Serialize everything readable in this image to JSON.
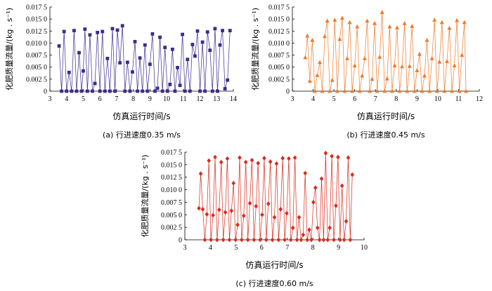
{
  "chart_data": [
    {
      "type": "line",
      "panel": "a",
      "caption": "(a)  行进速度0.35 m/s",
      "xlabel": "仿真运行时间/s",
      "ylabel": "化肥质量流量/(kg . s⁻¹)",
      "xlim": [
        3,
        14
      ],
      "ylim": [
        0,
        0.0175
      ],
      "xticks": [
        3,
        4,
        5,
        6,
        7,
        8,
        9,
        10,
        11,
        12,
        13,
        14
      ],
      "yticks": [
        0,
        0.0025,
        0.005,
        0.0075,
        0.01,
        0.0125,
        0.015,
        0.0175
      ],
      "ytick_labels": [
        "0",
        "0.002 5",
        "0.005 0",
        "0.007 5",
        "0.010 0",
        "0.012 5",
        "0.015 0",
        "0.017 5"
      ],
      "marker": "square",
      "color": "#3b2c8c",
      "x": [
        3.55,
        3.7,
        3.85,
        4.0,
        4.15,
        4.3,
        4.45,
        4.6,
        4.75,
        4.9,
        5.0,
        5.1,
        5.25,
        5.4,
        5.55,
        5.7,
        5.85,
        6.0,
        6.15,
        6.3,
        6.45,
        6.6,
        6.75,
        6.9,
        7.05,
        7.2,
        7.35,
        7.5,
        7.65,
        7.8,
        7.95,
        8.1,
        8.25,
        8.4,
        8.55,
        8.7,
        8.85,
        9.0,
        9.15,
        9.3,
        9.45,
        9.6,
        9.75,
        9.9,
        10.05,
        10.2,
        10.35,
        10.5,
        10.65,
        10.8,
        10.95,
        11.1,
        11.25,
        11.4,
        11.55,
        11.7,
        11.85,
        12.0,
        12.15,
        12.3,
        12.45,
        12.6,
        12.75,
        12.9,
        13.05,
        13.2,
        13.35,
        13.5,
        13.65,
        13.8
      ],
      "y": [
        0.0094,
        0,
        0.0124,
        0,
        0.0039,
        0,
        0.0126,
        0,
        0.008,
        0,
        0.0042,
        0.0129,
        0,
        0.0117,
        0,
        0.0016,
        0.0122,
        0,
        0.0124,
        0,
        0.0068,
        0,
        0.013,
        0,
        0.0127,
        0.0059,
        0.0136,
        0,
        0.006,
        0,
        0.004,
        0.0103,
        0,
        0.0069,
        0,
        0.0096,
        0,
        0.0056,
        0.0119,
        0,
        0.0006,
        0.0112,
        0,
        0.0091,
        0,
        0.0014,
        0.0087,
        0,
        0.0049,
        0.0012,
        0.0118,
        0,
        0.0066,
        0,
        0.0097,
        0.0073,
        0.0125,
        0,
        0.0102,
        0,
        0.0123,
        0.0085,
        0,
        0.013,
        0,
        0.0096,
        0.0126,
        0.0005,
        0.0023,
        0.0126
      ]
    },
    {
      "type": "line",
      "panel": "b",
      "caption": "(b)  行进速度0.45 m/s",
      "xlabel": "仿真运行时间/s",
      "ylabel": "化肥质量流量/(kg . s⁻¹)",
      "xlim": [
        3,
        12
      ],
      "ylim": [
        0,
        0.0175
      ],
      "xticks": [
        3,
        4,
        5,
        6,
        7,
        8,
        9,
        10,
        11,
        12
      ],
      "yticks": [
        0,
        0.0025,
        0.005,
        0.0075,
        0.01,
        0.0125,
        0.015,
        0.0175
      ],
      "ytick_labels": [
        "0",
        "0.002 5",
        "0.005 0",
        "0.007 5",
        "0.010 0",
        "0.012 5",
        "0.015 0",
        "0.017 5"
      ],
      "marker": "triangle",
      "color": "#f07a2a",
      "x": [
        3.62,
        3.72,
        3.84,
        3.96,
        4.08,
        4.2,
        4.32,
        4.44,
        4.56,
        4.68,
        4.8,
        4.92,
        5.04,
        5.16,
        5.28,
        5.4,
        5.52,
        5.64,
        5.76,
        5.88,
        6.0,
        6.12,
        6.24,
        6.36,
        6.48,
        6.6,
        6.72,
        6.84,
        6.96,
        7.08,
        7.2,
        7.32,
        7.44,
        7.56,
        7.68,
        7.8,
        7.92,
        8.04,
        8.16,
        8.28,
        8.4,
        8.52,
        8.64,
        8.76,
        8.88,
        9.0,
        9.12,
        9.24,
        9.36,
        9.48,
        9.6,
        9.72,
        9.84,
        9.96,
        10.08,
        10.2,
        10.32,
        10.44,
        10.56,
        10.68,
        10.8,
        10.92,
        11.04,
        11.16,
        11.28,
        11.36
      ],
      "y": [
        0.007,
        0.0115,
        0.0021,
        0.0106,
        0,
        0.0033,
        0.006,
        0,
        0.0114,
        0.0146,
        0,
        0.0023,
        0.0148,
        0,
        0.0108,
        0.0152,
        0,
        0.0068,
        0.0143,
        0,
        0.0053,
        0.0134,
        0,
        0.0032,
        0.0068,
        0.0146,
        0,
        0.0025,
        0.0141,
        0,
        0.0071,
        0.0164,
        0,
        0.0026,
        0.0134,
        0,
        0.0053,
        0.0132,
        0,
        0.0051,
        0.0141,
        0,
        0.0052,
        0.0135,
        0,
        0.0043,
        0.0077,
        0,
        0.0032,
        0.0106,
        0,
        0.0068,
        0.0148,
        0,
        0.0061,
        0.0143,
        0,
        0.0062,
        0.0131,
        0,
        0.0053,
        0.0147,
        0,
        0.0075,
        0.0143,
        0
      ]
    },
    {
      "type": "line",
      "panel": "c",
      "caption": "(c)  行进速度0.60 m/s",
      "xlabel": "仿真运行时间/s",
      "ylabel": "化肥质量流量/(kg . s⁻¹)",
      "xlim": [
        3,
        10
      ],
      "ylim": [
        0,
        0.0175
      ],
      "xticks": [
        3,
        4,
        5,
        6,
        7,
        8,
        9,
        10
      ],
      "yticks": [
        0,
        0.0025,
        0.005,
        0.0075,
        0.01,
        0.0125,
        0.015,
        0.0175
      ],
      "ytick_labels": [
        "0",
        "0.002 5",
        "0.005 0",
        "0.007 5",
        "0.010 0",
        "0.012 5",
        "0.015 0",
        "0.017 5"
      ],
      "marker": "diamond",
      "color": "#d92a1c",
      "x": [
        3.55,
        3.62,
        3.7,
        3.78,
        3.86,
        3.94,
        4.02,
        4.1,
        4.18,
        4.26,
        4.34,
        4.42,
        4.5,
        4.58,
        4.66,
        4.74,
        4.82,
        4.9,
        4.98,
        5.06,
        5.14,
        5.22,
        5.3,
        5.38,
        5.46,
        5.54,
        5.62,
        5.7,
        5.78,
        5.86,
        5.94,
        6.02,
        6.1,
        6.18,
        6.26,
        6.34,
        6.42,
        6.5,
        6.58,
        6.66,
        6.74,
        6.82,
        6.9,
        6.98,
        7.06,
        7.14,
        7.22,
        7.3,
        7.38,
        7.46,
        7.54,
        7.62,
        7.7,
        7.78,
        7.86,
        7.94,
        8.02,
        8.1,
        8.18,
        8.26,
        8.34,
        8.42,
        8.5,
        8.58,
        8.66,
        8.74,
        8.82,
        8.9,
        8.98,
        9.06,
        9.14,
        9.22,
        9.3,
        9.38,
        9.46,
        9.54
      ],
      "y": [
        0.0063,
        0.0132,
        0.0061,
        0,
        0.0051,
        0.0158,
        0,
        0.0049,
        0.0165,
        0,
        0.006,
        0.0155,
        0,
        0.0055,
        0.0162,
        0,
        0.0058,
        0.0113,
        0,
        0.003,
        0.0164,
        0,
        0.0048,
        0.0155,
        0,
        0.0073,
        0.0159,
        0,
        0.0067,
        0.0153,
        0,
        0.005,
        0.0163,
        0,
        0.0072,
        0.0156,
        0,
        0.0045,
        0.0152,
        0,
        0.0061,
        0.0163,
        0,
        0.0053,
        0.0162,
        0,
        0.0024,
        0.0164,
        0,
        0.0045,
        0,
        0.001,
        0.0133,
        0,
        0.002,
        0,
        0.0075,
        0.0104,
        0.0024,
        0,
        0.0122,
        0,
        0.0173,
        0,
        0.0024,
        0.0167,
        0,
        0.0068,
        0.0165,
        0,
        0.0108,
        0,
        0.0037,
        0.0164,
        0,
        0.013
      ]
    }
  ]
}
